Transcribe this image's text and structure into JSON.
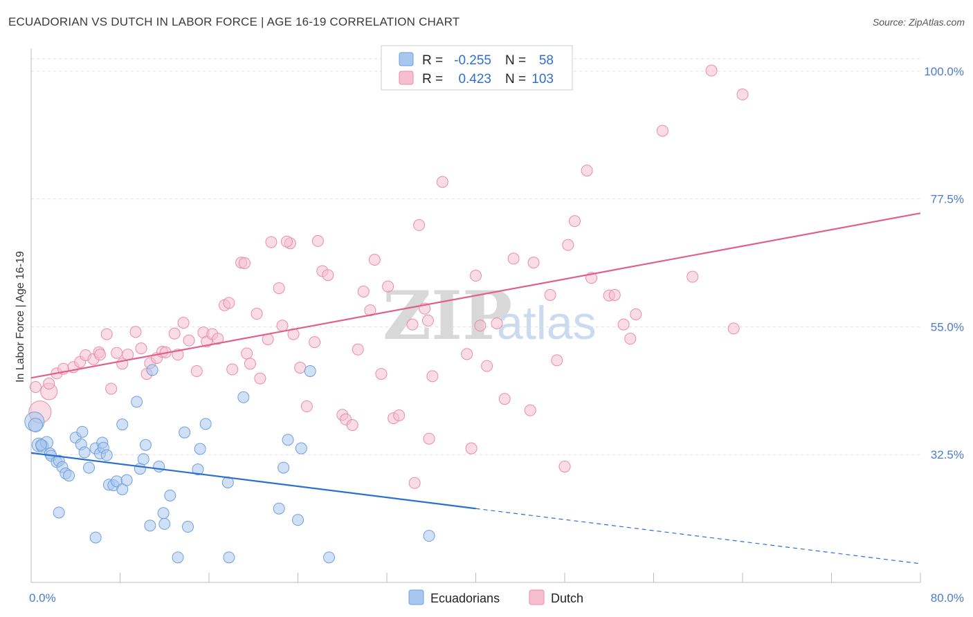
{
  "title": "ECUADORIAN VS DUTCH IN LABOR FORCE | AGE 16-19 CORRELATION CHART",
  "source": "Source: ZipAtlas.com",
  "watermark": {
    "zip": "ZIP",
    "atlas": "atlas"
  },
  "legend": {
    "rows": [
      {
        "r_label": "R =",
        "r_value": "-0.255",
        "n_label": "N =",
        "n_value": "58"
      },
      {
        "r_label": "R =",
        "r_value": "0.423",
        "n_label": "N =",
        "n_value": "103"
      }
    ]
  },
  "colors": {
    "ecuadorian_fill": "#a9c6ee",
    "ecuadorian_stroke": "#6f9fdc",
    "ecuadorian_line": "#2a6fd0",
    "dutch_fill": "#f6bfd0",
    "dutch_stroke": "#e98bab",
    "dutch_line": "#e0608a",
    "tick_text": "#4a7bd0",
    "grid": "#dddddd"
  },
  "chart_data": {
    "type": "scatter",
    "title": "ECUADORIAN VS DUTCH IN LABOR FORCE | AGE 16-19 CORRELATION CHART",
    "xlabel": "",
    "ylabel": "In Labor Force | Age 16-19",
    "xlim": [
      0,
      80
    ],
    "ylim": [
      10,
      104
    ],
    "x_tick_labels": [
      "0.0%",
      "80.0%"
    ],
    "y_ticks": [
      32.5,
      55.0,
      77.5,
      100.0
    ],
    "y_tick_labels": [
      "32.5%",
      "55.0%",
      "77.5%",
      "100.0%"
    ],
    "grid": true,
    "legend_position": "top-center",
    "series": [
      {
        "name": "Ecuadorians",
        "r": -0.255,
        "n": 58,
        "trend": {
          "x0": 0,
          "y0": 32.8,
          "x1": 40,
          "y1": 23.0,
          "dashed_to_x": 80,
          "dashed_to_y": 13.3
        },
        "points": [
          [
            0.3,
            38.3,
            14
          ],
          [
            0.4,
            37.7,
            10
          ],
          [
            0.7,
            34.2,
            10
          ],
          [
            1.0,
            34.0,
            9
          ],
          [
            1.4,
            34.6,
            9
          ],
          [
            1.7,
            32.7,
            8
          ],
          [
            1.8,
            32.3,
            8
          ],
          [
            2.3,
            31.2,
            8
          ],
          [
            2.5,
            31.4,
            8
          ],
          [
            2.8,
            30.3,
            8
          ],
          [
            3.1,
            29.2,
            8
          ],
          [
            3.4,
            28.8,
            8
          ],
          [
            4.0,
            35.5,
            8
          ],
          [
            4.6,
            36.5,
            8
          ],
          [
            4.5,
            34.3,
            8
          ],
          [
            4.8,
            32.9,
            8
          ],
          [
            5.2,
            30.2,
            8
          ],
          [
            5.8,
            33.6,
            8
          ],
          [
            6.2,
            32.7,
            8
          ],
          [
            6.4,
            34.6,
            8
          ],
          [
            6.5,
            33.7,
            8
          ],
          [
            6.8,
            32.4,
            8
          ],
          [
            7.0,
            27.2,
            8
          ],
          [
            7.4,
            27.1,
            8
          ],
          [
            7.7,
            27.8,
            8
          ],
          [
            8.2,
            26.4,
            8
          ],
          [
            8.6,
            28.0,
            8
          ],
          [
            8.2,
            37.8,
            8
          ],
          [
            9.5,
            41.8,
            8
          ],
          [
            9.8,
            30.0,
            8
          ],
          [
            10.1,
            31.7,
            8
          ],
          [
            10.3,
            34.2,
            8
          ],
          [
            10.9,
            47.4,
            8
          ],
          [
            11.5,
            30.4,
            8
          ],
          [
            12.5,
            25.3,
            8
          ],
          [
            11.9,
            22.2,
            8
          ],
          [
            12.0,
            20.3,
            8
          ],
          [
            10.7,
            20.0,
            8
          ],
          [
            13.8,
            36.4,
            8
          ],
          [
            14.1,
            19.8,
            8
          ],
          [
            15.0,
            29.9,
            8
          ],
          [
            15.2,
            33.5,
            8
          ],
          [
            15.7,
            37.9,
            8
          ],
          [
            17.7,
            27.6,
            8
          ],
          [
            19.1,
            42.6,
            8
          ],
          [
            22.3,
            23.0,
            8
          ],
          [
            22.7,
            30.2,
            8
          ],
          [
            23.1,
            35.1,
            8
          ],
          [
            24.0,
            21.0,
            8
          ],
          [
            24.3,
            33.6,
            8
          ],
          [
            25.1,
            47.2,
            8
          ],
          [
            26.8,
            14.4,
            8
          ],
          [
            35.8,
            18.2,
            8
          ],
          [
            13.2,
            14.4,
            8
          ],
          [
            17.8,
            14.4,
            8
          ],
          [
            2.5,
            22.3,
            8
          ],
          [
            5.8,
            17.9,
            8
          ],
          [
            0.9,
            34.2,
            8
          ]
        ]
      },
      {
        "name": "Dutch",
        "r": 0.423,
        "n": 103,
        "trend": {
          "x0": 0,
          "y0": 46.0,
          "x1": 80,
          "y1": 75.0
        },
        "points": [
          [
            0.8,
            40.0,
            16
          ],
          [
            1.6,
            43.6,
            12
          ],
          [
            1.6,
            45.0,
            8
          ],
          [
            0.4,
            44.4,
            8
          ],
          [
            2.3,
            46.8,
            8
          ],
          [
            2.9,
            47.6,
            8
          ],
          [
            3.8,
            47.9,
            8
          ],
          [
            4.4,
            48.8,
            8
          ],
          [
            4.9,
            50.0,
            8
          ],
          [
            5.6,
            49.3,
            8
          ],
          [
            6.1,
            50.5,
            8
          ],
          [
            6.2,
            50.1,
            8
          ],
          [
            6.8,
            53.7,
            8
          ],
          [
            7.2,
            44.1,
            8
          ],
          [
            7.7,
            50.4,
            8
          ],
          [
            8.2,
            48.5,
            8
          ],
          [
            8.7,
            50.1,
            8
          ],
          [
            9.4,
            54.1,
            8
          ],
          [
            9.9,
            51.2,
            8
          ],
          [
            10.4,
            46.7,
            8
          ],
          [
            10.7,
            48.6,
            8
          ],
          [
            11.3,
            49.5,
            8
          ],
          [
            11.8,
            50.6,
            8
          ],
          [
            12.1,
            50.5,
            8
          ],
          [
            12.9,
            53.8,
            8
          ],
          [
            13.2,
            50.1,
            8
          ],
          [
            13.7,
            55.7,
            8
          ],
          [
            14.2,
            52.6,
            8
          ],
          [
            14.9,
            47.2,
            8
          ],
          [
            15.5,
            54.0,
            8
          ],
          [
            15.8,
            52.4,
            8
          ],
          [
            16.3,
            53.7,
            8
          ],
          [
            16.8,
            52.9,
            8
          ],
          [
            17.4,
            58.8,
            8
          ],
          [
            17.8,
            59.2,
            8
          ],
          [
            18.1,
            47.5,
            8
          ],
          [
            18.9,
            66.3,
            8
          ],
          [
            19.4,
            50.3,
            8
          ],
          [
            19.7,
            48.5,
            8
          ],
          [
            20.3,
            57.3,
            8
          ],
          [
            20.6,
            45.9,
            8
          ],
          [
            21.3,
            52.8,
            8
          ],
          [
            21.6,
            69.9,
            8
          ],
          [
            22.3,
            61.8,
            8
          ],
          [
            22.6,
            55.2,
            8
          ],
          [
            23.3,
            69.7,
            8
          ],
          [
            23.6,
            53.7,
            8
          ],
          [
            24.2,
            47.8,
            8
          ],
          [
            24.8,
            41.0,
            8
          ],
          [
            25.5,
            52.3,
            8
          ],
          [
            25.8,
            70.1,
            8
          ],
          [
            26.2,
            64.8,
            8
          ],
          [
            26.7,
            64.1,
            8
          ],
          [
            28.0,
            39.5,
            8
          ],
          [
            28.3,
            38.7,
            8
          ],
          [
            28.9,
            37.7,
            8
          ],
          [
            29.4,
            51.0,
            8
          ],
          [
            29.9,
            61.2,
            8
          ],
          [
            30.5,
            57.9,
            8
          ],
          [
            30.9,
            66.8,
            8
          ],
          [
            31.5,
            46.7,
            8
          ],
          [
            32.1,
            62.1,
            8
          ],
          [
            32.6,
            38.9,
            8
          ],
          [
            33.1,
            39.4,
            8
          ],
          [
            34.3,
            55.4,
            8
          ],
          [
            34.9,
            72.9,
            8
          ],
          [
            35.4,
            58.2,
            8
          ],
          [
            35.7,
            56.1,
            8
          ],
          [
            36.1,
            46.3,
            8
          ],
          [
            37.0,
            80.5,
            8
          ],
          [
            39.2,
            50.2,
            8
          ],
          [
            39.6,
            33.6,
            8
          ],
          [
            40.0,
            64.0,
            8
          ],
          [
            40.4,
            55.2,
            8
          ],
          [
            41.0,
            48.1,
            8
          ],
          [
            41.9,
            55.6,
            8
          ],
          [
            42.6,
            42.3,
            8
          ],
          [
            43.4,
            67.0,
            8
          ],
          [
            44.9,
            40.3,
            8
          ],
          [
            45.2,
            66.3,
            8
          ],
          [
            46.7,
            60.6,
            8
          ],
          [
            47.3,
            49.1,
            8
          ],
          [
            48.0,
            30.4,
            8
          ],
          [
            48.3,
            69.4,
            8
          ],
          [
            48.9,
            73.6,
            8
          ],
          [
            50.0,
            82.5,
            8
          ],
          [
            50.4,
            63.6,
            8
          ],
          [
            52.0,
            60.5,
            8
          ],
          [
            52.5,
            60.6,
            8
          ],
          [
            53.3,
            55.4,
            8
          ],
          [
            53.9,
            52.9,
            8
          ],
          [
            54.4,
            57.2,
            8
          ],
          [
            56.8,
            89.5,
            8
          ],
          [
            59.5,
            63.8,
            8
          ],
          [
            61.2,
            100.1,
            8
          ],
          [
            63.2,
            54.7,
            8
          ],
          [
            64.0,
            95.9,
            8
          ],
          [
            35.8,
            35.3,
            8
          ],
          [
            34.5,
            27.5,
            8
          ],
          [
            40.0,
            99.9,
            8
          ],
          [
            33.6,
            100.1,
            8
          ],
          [
            19.2,
            66.2,
            8
          ],
          [
            23.0,
            70.0,
            8
          ]
        ]
      }
    ]
  },
  "bottom_legend": [
    {
      "label": "Ecuadorians"
    },
    {
      "label": "Dutch"
    }
  ]
}
